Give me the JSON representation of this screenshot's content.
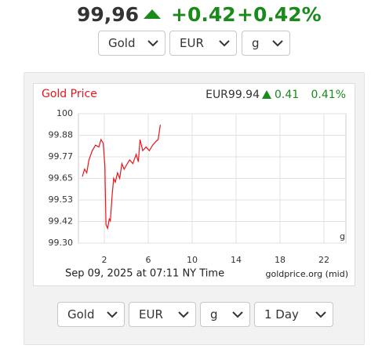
{
  "header": {
    "price": "99,96",
    "change": "+0.42",
    "change_pct": "+0.42%"
  },
  "top_selects": [
    "Gold",
    "EUR",
    "g"
  ],
  "chart_data": {
    "type": "line",
    "title": "Gold Price",
    "price_label": "EUR99.94",
    "change": "0.41",
    "change_pct": "0.41%",
    "x": [
      0.0,
      0.2,
      0.4,
      0.6,
      0.9,
      1.2,
      1.5,
      1.7,
      1.9,
      2.05,
      2.15,
      2.3,
      2.45,
      2.55,
      2.7,
      2.85,
      3.0,
      3.2,
      3.4,
      3.6,
      3.8,
      4.0,
      4.3,
      4.6,
      4.9,
      5.1,
      5.25,
      5.5,
      5.8,
      6.1,
      6.4,
      6.7,
      6.9,
      7.1
    ],
    "series": [
      {
        "name": "Gold",
        "color": "#e8141c",
        "values": [
          99.66,
          99.7,
          99.68,
          99.75,
          99.8,
          99.83,
          99.82,
          99.86,
          99.84,
          99.72,
          99.4,
          99.38,
          99.43,
          99.42,
          99.55,
          99.65,
          99.63,
          99.68,
          99.65,
          99.73,
          99.7,
          99.72,
          99.75,
          99.73,
          99.78,
          99.74,
          99.86,
          99.8,
          99.82,
          99.8,
          99.83,
          99.85,
          99.86,
          99.94
        ]
      }
    ],
    "xlim": [
      0,
      24
    ],
    "xticks": [
      2,
      6,
      10,
      14,
      18,
      22
    ],
    "ylim": [
      99.3,
      100
    ],
    "yticks": [
      {
        "value": 100,
        "label": "100"
      },
      {
        "value": 99.8833,
        "label": "99.88"
      },
      {
        "value": 99.7667,
        "label": "99.77"
      },
      {
        "value": 99.65,
        "label": "99.65"
      },
      {
        "value": 99.5333,
        "label": "99.53"
      },
      {
        "value": 99.4167,
        "label": "99.42"
      },
      {
        "value": 99.3,
        "label": "99.30"
      }
    ],
    "grid": true,
    "unit_label": "g",
    "timestamp": "Sep 09, 2025 at 07:11 NY Time",
    "source": "goldprice.org (mid)"
  },
  "bottom_selects": [
    "Gold",
    "EUR",
    "g",
    "1 Day"
  ]
}
